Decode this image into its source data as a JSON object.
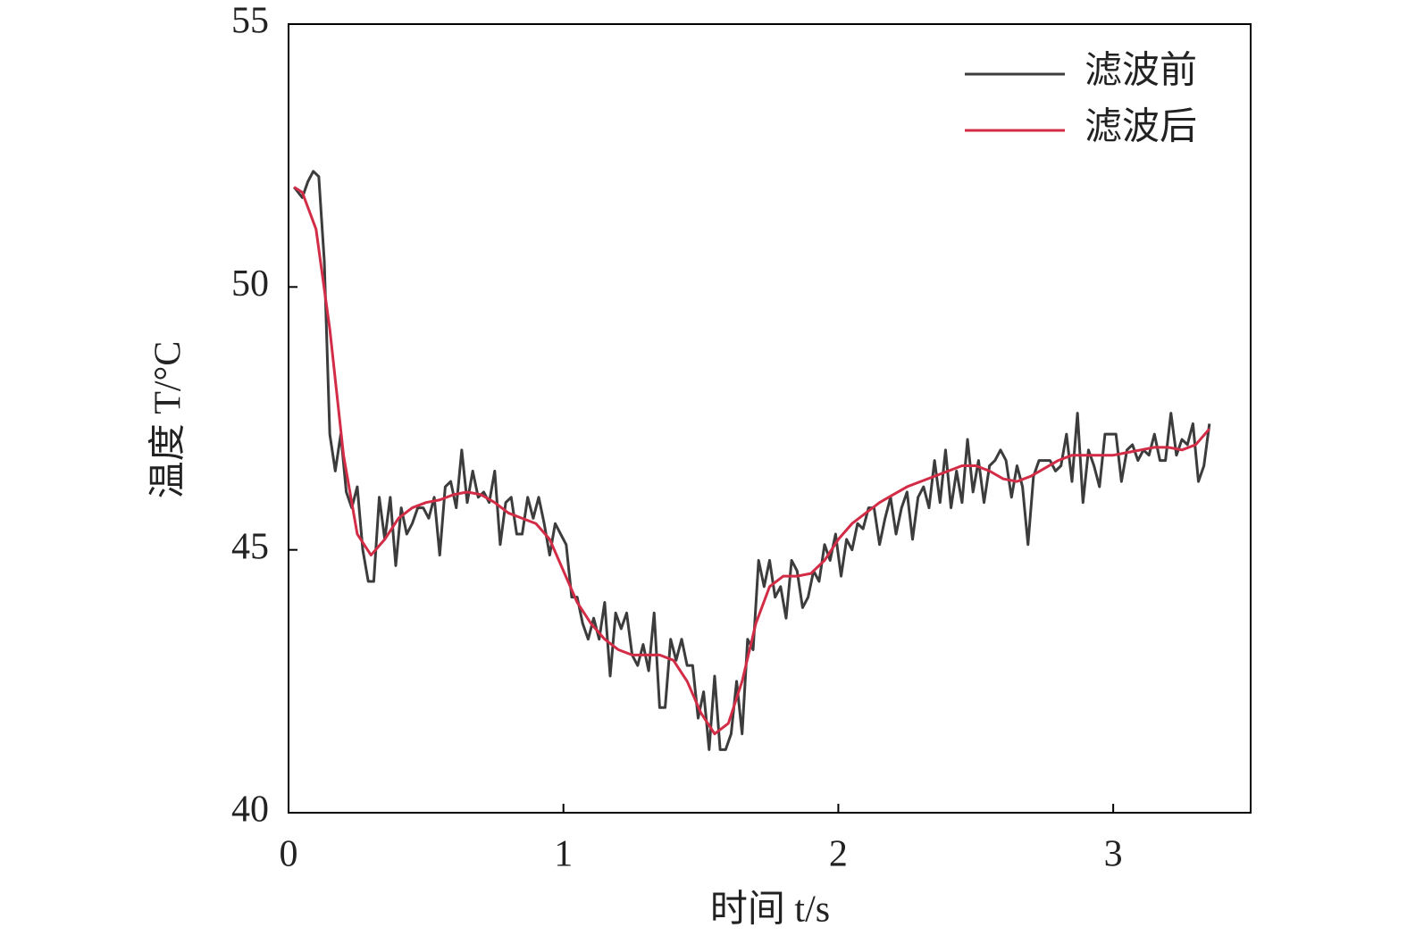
{
  "chart_data": {
    "type": "line",
    "x_label": "时间 t/s",
    "y_label": "温度 T/°C",
    "xlim": [
      0,
      3.5
    ],
    "ylim": [
      40,
      55
    ],
    "xticks": [
      0,
      1,
      2,
      3
    ],
    "yticks": [
      40,
      45,
      50,
      55
    ],
    "grid": false,
    "legend": "upper-right",
    "series": [
      {
        "name": "滤波前",
        "color": "#3c3c3c",
        "x": [
          0.02,
          0.05,
          0.07,
          0.09,
          0.11,
          0.13,
          0.15,
          0.17,
          0.19,
          0.21,
          0.23,
          0.25,
          0.27,
          0.29,
          0.31,
          0.33,
          0.35,
          0.37,
          0.39,
          0.41,
          0.43,
          0.45,
          0.47,
          0.49,
          0.51,
          0.53,
          0.55,
          0.57,
          0.59,
          0.61,
          0.63,
          0.65,
          0.67,
          0.69,
          0.71,
          0.73,
          0.75,
          0.77,
          0.79,
          0.81,
          0.83,
          0.85,
          0.87,
          0.89,
          0.91,
          0.93,
          0.95,
          0.97,
          0.99,
          1.01,
          1.03,
          1.05,
          1.07,
          1.09,
          1.11,
          1.13,
          1.15,
          1.17,
          1.19,
          1.21,
          1.23,
          1.25,
          1.27,
          1.29,
          1.31,
          1.33,
          1.35,
          1.37,
          1.39,
          1.41,
          1.43,
          1.45,
          1.47,
          1.49,
          1.51,
          1.53,
          1.55,
          1.57,
          1.59,
          1.61,
          1.63,
          1.65,
          1.67,
          1.69,
          1.71,
          1.73,
          1.75,
          1.77,
          1.79,
          1.81,
          1.83,
          1.85,
          1.87,
          1.89,
          1.91,
          1.93,
          1.95,
          1.97,
          1.99,
          2.01,
          2.03,
          2.05,
          2.07,
          2.09,
          2.11,
          2.13,
          2.15,
          2.17,
          2.19,
          2.21,
          2.23,
          2.25,
          2.27,
          2.29,
          2.31,
          2.33,
          2.35,
          2.37,
          2.39,
          2.41,
          2.43,
          2.45,
          2.47,
          2.49,
          2.51,
          2.53,
          2.55,
          2.57,
          2.59,
          2.61,
          2.63,
          2.65,
          2.67,
          2.69,
          2.71,
          2.73,
          2.75,
          2.77,
          2.79,
          2.81,
          2.83,
          2.85,
          2.87,
          2.89,
          2.91,
          2.93,
          2.95,
          2.97,
          2.99,
          3.01,
          3.03,
          3.05,
          3.07,
          3.09,
          3.11,
          3.13,
          3.15,
          3.17,
          3.19,
          3.21,
          3.23,
          3.25,
          3.27,
          3.29,
          3.31,
          3.33,
          3.35
        ],
        "values": [
          51.9,
          51.7,
          52.0,
          52.2,
          52.1,
          50.5,
          47.2,
          46.5,
          47.2,
          46.1,
          45.8,
          46.2,
          45.0,
          44.4,
          44.4,
          46.0,
          45.2,
          46.0,
          44.7,
          45.8,
          45.3,
          45.5,
          45.8,
          45.8,
          45.6,
          46.0,
          44.9,
          46.2,
          46.3,
          45.8,
          46.9,
          45.9,
          46.5,
          46.0,
          46.1,
          45.9,
          46.5,
          45.1,
          45.9,
          46.0,
          45.3,
          45.3,
          46.0,
          45.6,
          46.0,
          45.5,
          44.9,
          45.5,
          45.3,
          45.1,
          44.1,
          44.1,
          43.6,
          43.3,
          43.7,
          43.3,
          44.0,
          42.6,
          43.8,
          43.5,
          43.8,
          43.0,
          42.8,
          43.2,
          42.7,
          43.8,
          42.0,
          42.0,
          43.3,
          42.9,
          43.3,
          42.8,
          42.8,
          41.8,
          42.3,
          41.2,
          42.6,
          41.2,
          41.2,
          41.5,
          42.5,
          41.5,
          43.3,
          43.1,
          44.8,
          44.3,
          44.8,
          44.1,
          44.3,
          43.7,
          44.8,
          44.6,
          43.9,
          44.1,
          44.6,
          44.4,
          45.1,
          44.8,
          45.3,
          44.5,
          45.2,
          45.0,
          45.5,
          45.4,
          45.8,
          45.8,
          45.1,
          45.6,
          46.0,
          45.3,
          45.8,
          46.1,
          45.2,
          46.0,
          46.2,
          45.8,
          46.7,
          45.9,
          46.9,
          45.8,
          46.5,
          45.9,
          47.1,
          46.1,
          46.7,
          45.9,
          46.6,
          46.7,
          46.9,
          46.7,
          46.0,
          46.6,
          46.2,
          45.1,
          46.4,
          46.7,
          46.7,
          46.7,
          46.5,
          46.6,
          47.2,
          46.3,
          47.6,
          45.9,
          46.9,
          46.6,
          46.2,
          47.2,
          47.2,
          47.2,
          46.3,
          46.9,
          47.0,
          46.7,
          46.9,
          46.8,
          47.2,
          46.7,
          46.7,
          47.6,
          46.8,
          47.1,
          47.0,
          47.4,
          46.3,
          46.6,
          47.4
        ]
      },
      {
        "name": "滤波后",
        "color": "#d22c46",
        "x": [
          0.02,
          0.05,
          0.1,
          0.15,
          0.2,
          0.25,
          0.3,
          0.35,
          0.4,
          0.45,
          0.5,
          0.55,
          0.6,
          0.65,
          0.7,
          0.75,
          0.8,
          0.85,
          0.9,
          0.95,
          1.0,
          1.05,
          1.1,
          1.15,
          1.2,
          1.25,
          1.3,
          1.35,
          1.4,
          1.45,
          1.5,
          1.55,
          1.6,
          1.65,
          1.7,
          1.75,
          1.8,
          1.85,
          1.9,
          1.95,
          2.0,
          2.05,
          2.1,
          2.15,
          2.2,
          2.25,
          2.3,
          2.35,
          2.4,
          2.45,
          2.5,
          2.55,
          2.6,
          2.65,
          2.7,
          2.75,
          2.8,
          2.85,
          2.9,
          2.95,
          3.0,
          3.05,
          3.1,
          3.15,
          3.2,
          3.25,
          3.3,
          3.35
        ],
        "values": [
          51.9,
          51.8,
          51.1,
          49.2,
          46.8,
          45.3,
          44.9,
          45.2,
          45.6,
          45.8,
          45.9,
          45.95,
          46.05,
          46.1,
          46.05,
          45.9,
          45.7,
          45.6,
          45.5,
          45.2,
          44.6,
          44.0,
          43.6,
          43.3,
          43.1,
          43.0,
          43.0,
          43.0,
          42.9,
          42.5,
          41.9,
          41.5,
          41.7,
          42.5,
          43.6,
          44.3,
          44.5,
          44.5,
          44.55,
          44.8,
          45.2,
          45.5,
          45.7,
          45.9,
          46.05,
          46.2,
          46.3,
          46.4,
          46.5,
          46.6,
          46.6,
          46.5,
          46.35,
          46.3,
          46.4,
          46.55,
          46.7,
          46.8,
          46.8,
          46.8,
          46.8,
          46.85,
          46.9,
          46.95,
          46.95,
          46.9,
          47.0,
          47.3
        ]
      }
    ]
  }
}
